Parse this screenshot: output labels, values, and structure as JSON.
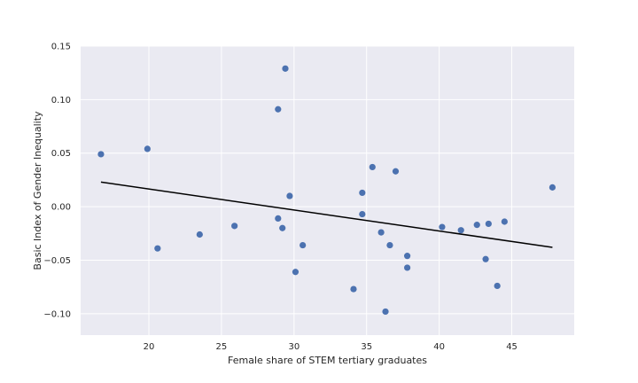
{
  "chart_data": {
    "type": "scatter",
    "xlabel": "Female share of STEM tertiary graduates",
    "ylabel": "Basic Index of Gender Inequality",
    "xlim": [
      15.3,
      49.3
    ],
    "ylim": [
      -0.12,
      0.15
    ],
    "x_ticks": [
      20,
      25,
      30,
      35,
      40,
      45
    ],
    "y_ticks": [
      -0.1,
      -0.05,
      0.0,
      0.05,
      0.1,
      0.15
    ],
    "x_tick_labels": [
      "20",
      "25",
      "30",
      "35",
      "40",
      "45"
    ],
    "y_tick_labels": [
      "−0.10",
      "−0.05",
      "0.00",
      "0.05",
      "0.10",
      "0.15"
    ],
    "grid": true,
    "colors": {
      "background": "#EAEAF2",
      "grid": "#FFFFFF",
      "points": "#4C72B0",
      "trend": "#000000"
    },
    "points": [
      {
        "x": 16.7,
        "y": 0.049
      },
      {
        "x": 19.9,
        "y": 0.054
      },
      {
        "x": 20.6,
        "y": -0.039
      },
      {
        "x": 23.5,
        "y": -0.026
      },
      {
        "x": 25.9,
        "y": -0.018
      },
      {
        "x": 28.9,
        "y": 0.091
      },
      {
        "x": 28.9,
        "y": -0.011
      },
      {
        "x": 29.2,
        "y": -0.02
      },
      {
        "x": 29.4,
        "y": 0.129
      },
      {
        "x": 29.7,
        "y": 0.01
      },
      {
        "x": 30.1,
        "y": -0.061
      },
      {
        "x": 30.6,
        "y": -0.036
      },
      {
        "x": 34.1,
        "y": -0.077
      },
      {
        "x": 34.7,
        "y": 0.013
      },
      {
        "x": 34.7,
        "y": -0.007
      },
      {
        "x": 35.4,
        "y": 0.037
      },
      {
        "x": 36.0,
        "y": -0.024
      },
      {
        "x": 36.3,
        "y": -0.098
      },
      {
        "x": 36.6,
        "y": -0.036
      },
      {
        "x": 37.0,
        "y": 0.033
      },
      {
        "x": 37.8,
        "y": -0.046
      },
      {
        "x": 37.8,
        "y": -0.057
      },
      {
        "x": 40.2,
        "y": -0.019
      },
      {
        "x": 41.5,
        "y": -0.022
      },
      {
        "x": 42.6,
        "y": -0.017
      },
      {
        "x": 43.2,
        "y": -0.049
      },
      {
        "x": 43.4,
        "y": -0.016
      },
      {
        "x": 44.0,
        "y": -0.074
      },
      {
        "x": 44.5,
        "y": -0.014
      },
      {
        "x": 47.8,
        "y": 0.018
      }
    ],
    "trend_line": {
      "x": [
        16.7,
        47.8
      ],
      "y": [
        0.023,
        -0.038
      ]
    }
  }
}
